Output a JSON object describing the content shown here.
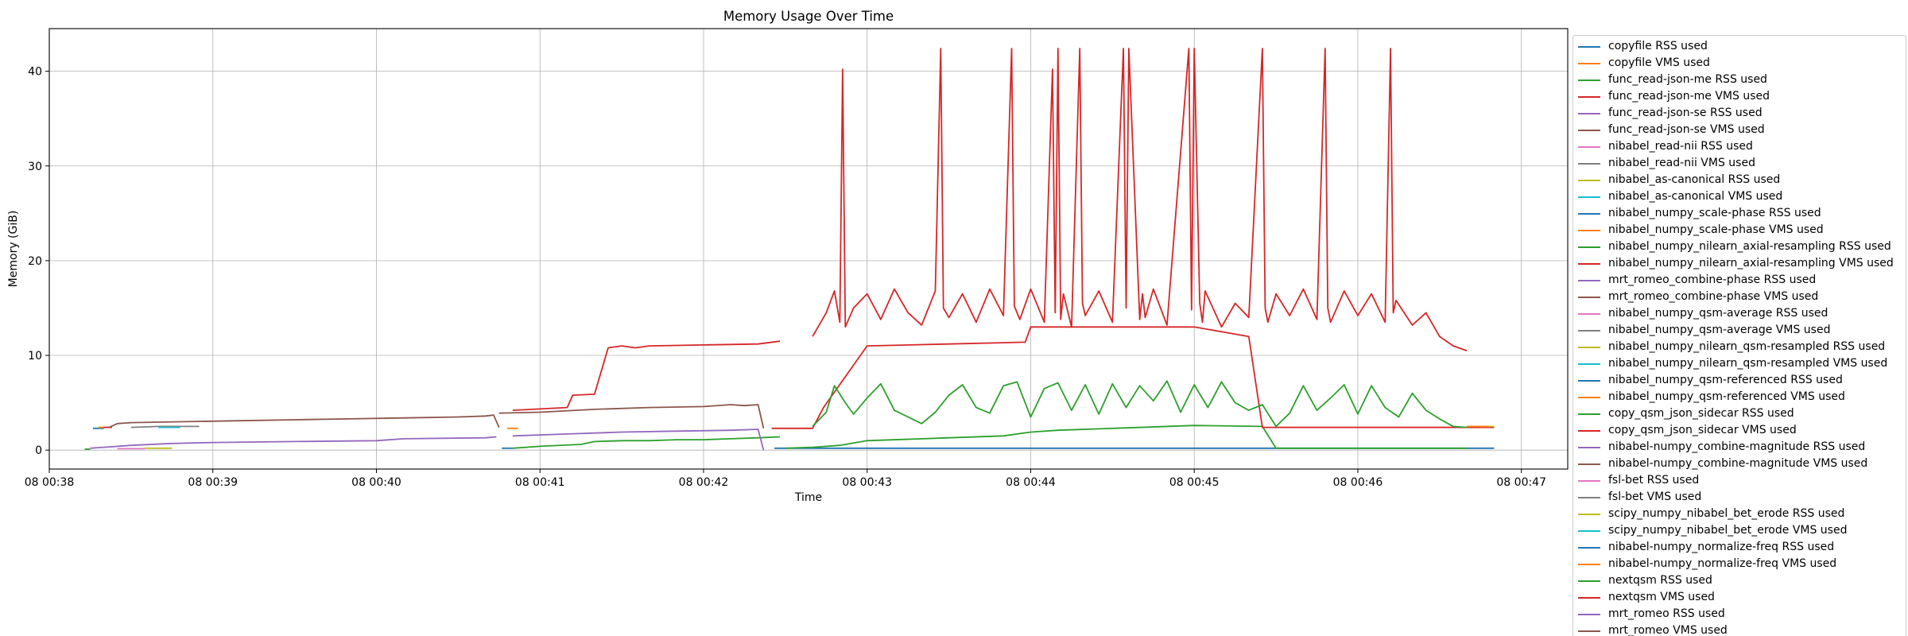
{
  "chart_data": {
    "type": "line",
    "title": "Memory Usage Over Time",
    "xlabel": "Time",
    "ylabel": "Memory (GiB)",
    "grid": true,
    "legend_position": "outside-right",
    "xlim": [
      "08 00:38:00",
      "08 00:47:17"
    ],
    "ylim": [
      -2,
      44.5
    ],
    "x_ticks": [
      "08 00:38:00",
      "08 00:39:00",
      "08 00:40:00",
      "08 00:41:00",
      "08 00:42:00",
      "08 00:43:00",
      "08 00:44:00",
      "08 00:45:00",
      "08 00:46:00",
      "08 00:47:00"
    ],
    "x_tick_labels": [
      "08 00:38",
      "08 00:39",
      "08 00:40",
      "08 00:41",
      "08 00:42",
      "08 00:43",
      "08 00:44",
      "08 00:45",
      "08 00:46",
      "08 00:47"
    ],
    "y_ticks": [
      0,
      10,
      20,
      30,
      40
    ],
    "series": [
      {
        "name": "copyfile RSS used",
        "color": "#1f77b4",
        "x": [
          "08 00:38:16",
          "08 00:38:20"
        ],
        "y": [
          2.3,
          2.3
        ]
      },
      {
        "name": "copyfile VMS used",
        "color": "#ff7f0e",
        "x": [
          "08 00:38:18",
          "08 00:38:22"
        ],
        "y": [
          2.4,
          2.4
        ]
      },
      {
        "name": "func_read-json-me RSS used",
        "color": "#2ca02c",
        "x": [
          "08 00:38:13",
          "08 00:38:15"
        ],
        "y": [
          0.1,
          0.1
        ]
      },
      {
        "name": "func_read-json-me VMS used",
        "color": "#d62728",
        "x": [
          "08 00:38:20",
          "08 00:38:23"
        ],
        "y": [
          2.4,
          2.4
        ]
      },
      {
        "name": "func_read-json-se RSS used",
        "color": "#9467bd",
        "x": [
          "08 00:38:15",
          "08 00:38:20",
          "08 00:38:30",
          "08 00:38:45",
          "08 00:39:00",
          "08 00:39:30",
          "08 00:40:00",
          "08 00:40:10",
          "08 00:40:40",
          "08 00:40:44"
        ],
        "y": [
          0.2,
          0.3,
          0.5,
          0.7,
          0.8,
          0.9,
          1.0,
          1.2,
          1.3,
          1.4
        ]
      },
      {
        "name": "func_read-json-se VMS used",
        "color": "#8c564b",
        "x": [
          "08 00:38:22",
          "08 00:38:25",
          "08 00:38:30",
          "08 00:38:50",
          "08 00:39:10",
          "08 00:39:30",
          "08 00:39:50",
          "08 00:40:10",
          "08 00:40:30",
          "08 00:40:40",
          "08 00:40:43",
          "08 00:40:45"
        ],
        "y": [
          2.4,
          2.8,
          2.9,
          3.0,
          3.1,
          3.2,
          3.3,
          3.4,
          3.5,
          3.6,
          3.7,
          2.4
        ]
      },
      {
        "name": "nibabel_read-nii RSS used",
        "color": "#e377c2",
        "x": [
          "08 00:38:25",
          "08 00:38:35"
        ],
        "y": [
          0.15,
          0.15
        ]
      },
      {
        "name": "nibabel_read-nii VMS used",
        "color": "#7f7f7f",
        "x": [
          "08 00:38:30",
          "08 00:38:40",
          "08 00:38:55"
        ],
        "y": [
          2.4,
          2.5,
          2.5
        ]
      },
      {
        "name": "nibabel_as-canonical RSS used",
        "color": "#bcbd22",
        "x": [
          "08 00:38:35",
          "08 00:38:45"
        ],
        "y": [
          0.2,
          0.2
        ]
      },
      {
        "name": "nibabel_as-canonical VMS used",
        "color": "#17becf",
        "x": [
          "08 00:38:40",
          "08 00:38:48"
        ],
        "y": [
          2.4,
          2.4
        ]
      },
      {
        "name": "nibabel_numpy_scale-phase RSS used",
        "color": "#1f77b4",
        "x": [
          "08 00:40:46",
          "08 00:40:50"
        ],
        "y": [
          0.2,
          0.2
        ]
      },
      {
        "name": "nibabel_numpy_scale-phase VMS used",
        "color": "#ff7f0e",
        "x": [
          "08 00:40:48",
          "08 00:40:52"
        ],
        "y": [
          2.3,
          2.3
        ]
      },
      {
        "name": "nibabel_numpy_nilearn_axial-resampling RSS used",
        "color": "#2ca02c",
        "x": [
          "08 00:40:50",
          "08 00:41:00",
          "08 00:41:15",
          "08 00:41:20",
          "08 00:41:30",
          "08 00:41:40",
          "08 00:41:50",
          "08 00:42:00",
          "08 00:42:10",
          "08 00:42:20",
          "08 00:42:28"
        ],
        "y": [
          0.2,
          0.4,
          0.6,
          0.9,
          1.0,
          1.0,
          1.1,
          1.1,
          1.2,
          1.3,
          1.4
        ]
      },
      {
        "name": "nibabel_numpy_nilearn_axial-resampling VMS used",
        "color": "#d62728",
        "x": [
          "08 00:40:50",
          "08 00:41:10",
          "08 00:41:12",
          "08 00:41:20",
          "08 00:41:25",
          "08 00:41:30",
          "08 00:41:35",
          "08 00:41:40",
          "08 00:42:00",
          "08 00:42:20",
          "08 00:42:28"
        ],
        "y": [
          4.2,
          4.5,
          5.8,
          5.9,
          10.8,
          11.0,
          10.8,
          11.0,
          11.1,
          11.2,
          11.5
        ]
      },
      {
        "name": "mrt_romeo_combine-phase RSS used",
        "color": "#9467bd",
        "x": [
          "08 00:40:50",
          "08 00:41:10",
          "08 00:41:30",
          "08 00:41:50",
          "08 00:42:10",
          "08 00:42:20",
          "08 00:42:22"
        ],
        "y": [
          1.5,
          1.7,
          1.9,
          2.0,
          2.1,
          2.2,
          0.0
        ]
      },
      {
        "name": "mrt_romeo_combine-phase VMS used",
        "color": "#8c564b",
        "x": [
          "08 00:40:45",
          "08 00:41:00",
          "08 00:41:20",
          "08 00:41:40",
          "08 00:42:00",
          "08 00:42:10",
          "08 00:42:15",
          "08 00:42:20",
          "08 00:42:22"
        ],
        "y": [
          3.9,
          4.0,
          4.3,
          4.5,
          4.6,
          4.8,
          4.7,
          4.8,
          2.3
        ]
      },
      {
        "name": "nibabel_numpy_qsm-average RSS used",
        "color": "#e377c2",
        "x": [],
        "y": []
      },
      {
        "name": "nibabel_numpy_qsm-average VMS used",
        "color": "#7f7f7f",
        "x": [],
        "y": []
      },
      {
        "name": "nibabel_numpy_nilearn_qsm-resampled RSS used",
        "color": "#bcbd22",
        "x": [],
        "y": []
      },
      {
        "name": "nibabel_numpy_nilearn_qsm-resampled VMS used",
        "color": "#17becf",
        "x": [],
        "y": []
      },
      {
        "name": "nibabel_numpy_qsm-referenced RSS used",
        "color": "#1f77b4",
        "x": [
          "08 00:42:26",
          "08 00:46:50"
        ],
        "y": [
          0.2,
          0.2
        ]
      },
      {
        "name": "nibabel_numpy_qsm-referenced VMS used",
        "color": "#ff7f0e",
        "x": [
          "08 00:45:30",
          "08 00:46:50"
        ],
        "y": [
          2.4,
          2.4
        ]
      },
      {
        "name": "copy_qsm_json_sidecar RSS used",
        "color": "#2ca02c",
        "x": [
          "08 00:42:30",
          "08 00:42:40",
          "08 00:42:50",
          "08 00:43:00",
          "08 00:43:30",
          "08 00:43:50",
          "08 00:44:00",
          "08 00:44:10",
          "08 00:44:30",
          "08 00:45:00",
          "08 00:45:25",
          "08 00:45:30",
          "08 00:46:00",
          "08 00:46:30",
          "08 00:46:40"
        ],
        "y": [
          0.2,
          0.3,
          0.5,
          1.0,
          1.3,
          1.5,
          1.9,
          2.1,
          2.3,
          2.6,
          2.5,
          0.2,
          0.2,
          0.2,
          0.2
        ]
      },
      {
        "name": "copy_qsm_json_sidecar VMS used",
        "color": "#d62728",
        "x": [
          "08 00:42:25",
          "08 00:42:40",
          "08 00:42:44",
          "08 00:43:00",
          "08 00:43:30",
          "08 00:43:58",
          "08 00:44:00",
          "08 00:45:00",
          "08 00:45:20",
          "08 00:45:25",
          "08 00:46:00",
          "08 00:46:40",
          "08 00:46:50"
        ],
        "y": [
          2.3,
          2.3,
          4.5,
          11.0,
          11.2,
          11.4,
          13.0,
          13.0,
          12.0,
          2.4,
          2.4,
          2.4,
          2.4
        ]
      },
      {
        "name": "nibabel-numpy_combine-magnitude RSS used",
        "color": "#9467bd",
        "x": [],
        "y": []
      },
      {
        "name": "nibabel-numpy_combine-magnitude VMS used",
        "color": "#8c564b",
        "x": [],
        "y": []
      },
      {
        "name": "fsl-bet RSS used",
        "color": "#e377c2",
        "x": [],
        "y": []
      },
      {
        "name": "fsl-bet VMS used",
        "color": "#7f7f7f",
        "x": [],
        "y": []
      },
      {
        "name": "scipy_numpy_nibabel_bet_erode RSS used",
        "color": "#bcbd22",
        "x": [
          "08 00:46:45",
          "08 00:46:50"
        ],
        "y": [
          2.5,
          2.5
        ]
      },
      {
        "name": "scipy_numpy_nibabel_bet_erode VMS used",
        "color": "#17becf",
        "x": [],
        "y": []
      },
      {
        "name": "nibabel-numpy_normalize-freq RSS used",
        "color": "#1f77b4",
        "x": [],
        "y": []
      },
      {
        "name": "nibabel-numpy_normalize-freq VMS used",
        "color": "#ff7f0e",
        "x": [
          "08 00:46:40",
          "08 00:46:48"
        ],
        "y": [
          2.5,
          2.5
        ]
      },
      {
        "name": "nextqsm RSS used",
        "color": "#2ca02c",
        "x": [
          "08 00:42:40",
          "08 00:42:45",
          "08 00:42:48",
          "08 00:42:52",
          "08 00:42:55",
          "08 00:43:00",
          "08 00:43:05",
          "08 00:43:10",
          "08 00:43:15",
          "08 00:43:20",
          "08 00:43:25",
          "08 00:43:30",
          "08 00:43:35",
          "08 00:43:40",
          "08 00:43:45",
          "08 00:43:50",
          "08 00:43:55",
          "08 00:44:00",
          "08 00:44:05",
          "08 00:44:10",
          "08 00:44:15",
          "08 00:44:20",
          "08 00:44:25",
          "08 00:44:30",
          "08 00:44:35",
          "08 00:44:40",
          "08 00:44:45",
          "08 00:44:50",
          "08 00:44:55",
          "08 00:45:00",
          "08 00:45:05",
          "08 00:45:10",
          "08 00:45:15",
          "08 00:45:20",
          "08 00:45:25",
          "08 00:45:30",
          "08 00:45:35",
          "08 00:45:40",
          "08 00:45:45",
          "08 00:45:50",
          "08 00:45:55",
          "08 00:46:00",
          "08 00:46:05",
          "08 00:46:10",
          "08 00:46:15",
          "08 00:46:20",
          "08 00:46:25",
          "08 00:46:30",
          "08 00:46:35",
          "08 00:46:40"
        ],
        "y": [
          2.5,
          4.0,
          6.8,
          5.0,
          3.8,
          5.5,
          7.0,
          4.2,
          3.5,
          2.8,
          4.0,
          5.8,
          6.9,
          4.5,
          3.9,
          6.8,
          7.2,
          3.5,
          6.5,
          7.1,
          4.2,
          6.9,
          3.8,
          7.0,
          4.5,
          6.8,
          5.2,
          7.3,
          4.0,
          6.9,
          4.5,
          7.2,
          5.0,
          4.2,
          4.8,
          2.5,
          3.9,
          6.8,
          4.2,
          5.5,
          6.9,
          3.8,
          6.8,
          4.5,
          3.5,
          6.0,
          4.2,
          3.3,
          2.5,
          2.4
        ]
      },
      {
        "name": "nextqsm VMS used",
        "color": "#d62728",
        "x": [
          "08 00:42:40",
          "08 00:42:45",
          "08 00:42:48",
          "08 00:42:50",
          "08 00:42:51",
          "08 00:42:52",
          "08 00:42:55",
          "08 00:43:00",
          "08 00:43:05",
          "08 00:43:10",
          "08 00:43:15",
          "08 00:43:20",
          "08 00:43:25",
          "08 00:43:27",
          "08 00:43:28",
          "08 00:43:30",
          "08 00:43:35",
          "08 00:43:40",
          "08 00:43:45",
          "08 00:43:50",
          "08 00:43:53",
          "08 00:43:54",
          "08 00:43:56",
          "08 00:44:00",
          "08 00:44:05",
          "08 00:44:08",
          "08 00:44:09",
          "08 00:44:10",
          "08 00:44:11",
          "08 00:44:12",
          "08 00:44:15",
          "08 00:44:18",
          "08 00:44:19",
          "08 00:44:20",
          "08 00:44:25",
          "08 00:44:30",
          "08 00:44:34",
          "08 00:44:35",
          "08 00:44:36",
          "08 00:44:40",
          "08 00:44:41",
          "08 00:44:42",
          "08 00:44:45",
          "08 00:44:50",
          "08 00:44:58",
          "08 00:44:59",
          "08 00:45:00",
          "08 00:45:02",
          "08 00:45:03",
          "08 00:45:04",
          "08 00:45:10",
          "08 00:45:15",
          "08 00:45:20",
          "08 00:45:25",
          "08 00:45:26",
          "08 00:45:27",
          "08 00:45:30",
          "08 00:45:35",
          "08 00:45:40",
          "08 00:45:45",
          "08 00:45:48",
          "08 00:45:49",
          "08 00:45:50",
          "08 00:45:55",
          "08 00:46:00",
          "08 00:46:05",
          "08 00:46:10",
          "08 00:46:12",
          "08 00:46:13",
          "08 00:46:14",
          "08 00:46:20",
          "08 00:46:25",
          "08 00:46:30",
          "08 00:46:35",
          "08 00:46:40"
        ],
        "y": [
          12.0,
          14.5,
          16.8,
          13.5,
          40.2,
          13.0,
          15.0,
          16.5,
          13.8,
          17.0,
          14.5,
          13.2,
          16.8,
          42.4,
          15.0,
          14.0,
          16.5,
          13.5,
          17.0,
          14.2,
          42.4,
          15.2,
          13.8,
          17.0,
          13.5,
          40.2,
          14.5,
          42.4,
          13.8,
          16.5,
          13.0,
          42.4,
          15.5,
          14.2,
          16.8,
          13.5,
          42.4,
          15.0,
          42.4,
          13.8,
          16.5,
          14.0,
          17.0,
          13.2,
          42.4,
          14.8,
          42.4,
          15.5,
          13.5,
          16.8,
          13.0,
          15.5,
          14.0,
          42.4,
          15.0,
          13.5,
          16.5,
          14.2,
          17.0,
          13.8,
          42.4,
          15.0,
          13.5,
          16.8,
          14.2,
          16.5,
          13.5,
          42.4,
          14.5,
          15.8,
          13.2,
          14.5,
          12.0,
          11.0,
          10.5
        ]
      },
      {
        "name": "mrt_romeo RSS used",
        "color": "#9467bd",
        "x": [],
        "y": []
      },
      {
        "name": "mrt_romeo VMS used",
        "color": "#8c564b",
        "x": [],
        "y": []
      }
    ]
  }
}
